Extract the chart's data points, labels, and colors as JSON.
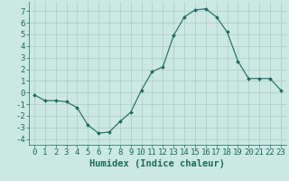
{
  "x": [
    0,
    1,
    2,
    3,
    4,
    5,
    6,
    7,
    8,
    9,
    10,
    11,
    12,
    13,
    14,
    15,
    16,
    17,
    18,
    19,
    20,
    21,
    22,
    23
  ],
  "y": [
    -0.2,
    -0.7,
    -0.7,
    -0.8,
    -1.3,
    -2.8,
    -3.5,
    -3.4,
    -2.5,
    -1.7,
    0.2,
    1.8,
    2.2,
    4.9,
    6.5,
    7.1,
    7.2,
    6.5,
    5.2,
    2.7,
    1.2,
    1.2,
    1.2,
    0.2
  ],
  "line_color": "#1a6b5e",
  "marker": "D",
  "marker_size": 2.0,
  "bg_color": "#cce8e3",
  "grid_color": "#aaccc6",
  "xlabel": "Humidex (Indice chaleur)",
  "xlabel_fontsize": 7.5,
  "tick_fontsize": 6.5,
  "ylim": [
    -4.5,
    7.8
  ],
  "xlim": [
    -0.5,
    23.5
  ],
  "yticks": [
    -4,
    -3,
    -2,
    -1,
    0,
    1,
    2,
    3,
    4,
    5,
    6,
    7
  ],
  "xticks": [
    0,
    1,
    2,
    3,
    4,
    5,
    6,
    7,
    8,
    9,
    10,
    11,
    12,
    13,
    14,
    15,
    16,
    17,
    18,
    19,
    20,
    21,
    22,
    23
  ]
}
